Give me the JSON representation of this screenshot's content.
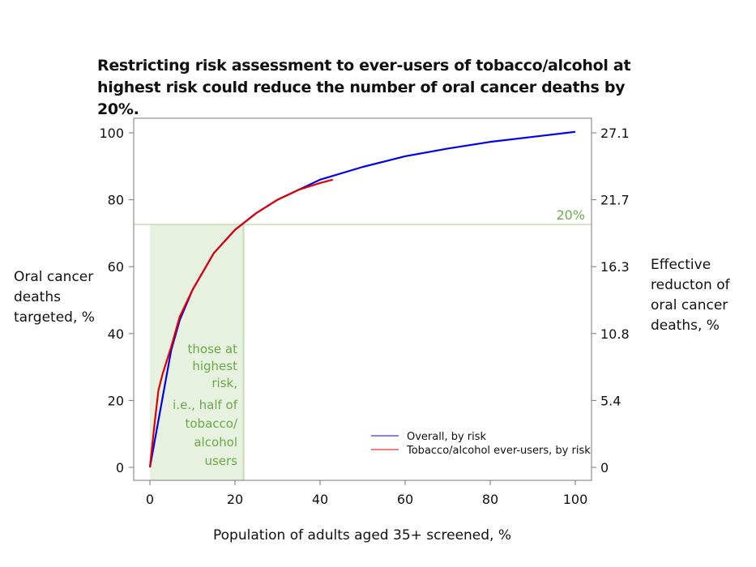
{
  "chart_data": {
    "type": "line",
    "title": "Restricting risk assessment to ever-users of tobacco/alcohol at highest risk could reduce the number of oral cancer deaths by 20%.",
    "xlabel": "Population of adults aged 35+ screened, %",
    "ylabel": "Oral cancer deaths targeted, %",
    "y2label": "Effective reducton of oral cancer deaths, %",
    "xlim": [
      -4,
      104
    ],
    "ylim": [
      -4,
      104
    ],
    "xticks": [
      "0",
      "20",
      "40",
      "60",
      "80",
      "100"
    ],
    "yticks": [
      "0",
      "20",
      "40",
      "60",
      "80",
      "100"
    ],
    "y2ticks": [
      "0",
      "5.4",
      "10.8",
      "16.3",
      "21.7",
      "27.1"
    ],
    "grid": false,
    "legend_position": "bottom-right",
    "series": [
      {
        "name": "Overall, by risk",
        "color": "#0000ee",
        "legend_color": "#8080ff",
        "x": [
          0,
          1,
          2,
          3,
          5,
          7,
          10,
          15,
          20,
          22,
          25,
          30,
          35,
          40,
          50,
          60,
          70,
          80,
          90,
          100
        ],
        "y": [
          0,
          7,
          14,
          21,
          35,
          44,
          53,
          64,
          71,
          73,
          76,
          80,
          83,
          86,
          89.8,
          93,
          95.3,
          97.3,
          98.8,
          100.3
        ]
      },
      {
        "name": "Tobacco/alcohol ever-users, by risk",
        "color": "#e00000",
        "legend_color": "#e00000",
        "x": [
          0,
          1,
          2,
          3,
          5,
          7,
          10,
          15,
          20,
          22,
          25,
          30,
          35,
          40,
          43
        ],
        "y": [
          0,
          12,
          23,
          28,
          36,
          45,
          53,
          64,
          71,
          73,
          76,
          80,
          83,
          85,
          86
        ]
      }
    ],
    "annotations": {
      "highlight_x": [
        0,
        22
      ],
      "threshold_y": 72.6,
      "threshold_label": "20%",
      "band_text_1": [
        "those at",
        "highest",
        "risk,"
      ],
      "band_text_2": [
        "i.e., half of",
        "tobacco/",
        "alcohol",
        "users"
      ],
      "color": "#6aaa48",
      "band_color": "#e6f1df",
      "line_color": "#c4deb4"
    }
  }
}
